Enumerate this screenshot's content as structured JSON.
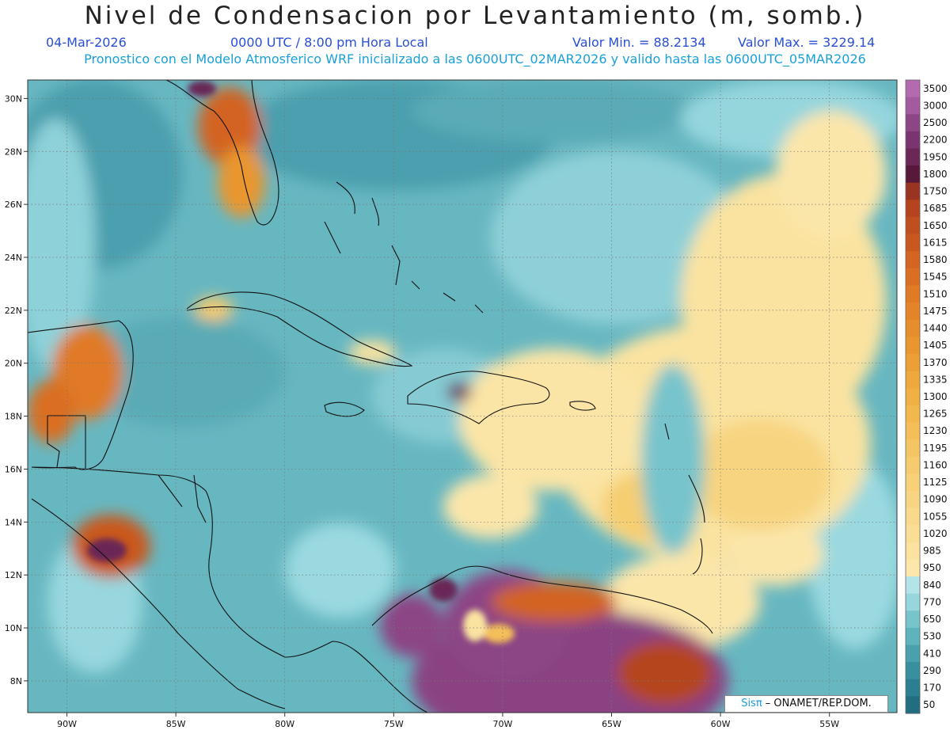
{
  "header": {
    "title": "Nivel de Condensacion por Levantamiento (m, somb.)",
    "date": "04-Mar-2026",
    "time": "0000 UTC / 8:00 pm Hora Local",
    "min_label": "Valor Min. = 88.2134",
    "max_label": "Valor Max. = 3229.14",
    "model_line": "Pronostico con el Modelo Atmosferico WRF inicializado a las 0600UTC_02MAR2026 y valido hasta las  0600UTC_05MAR2026"
  },
  "map": {
    "lat_ticks": [
      "30N",
      "28N",
      "26N",
      "24N",
      "22N",
      "20N",
      "18N",
      "16N",
      "14N",
      "12N",
      "10N",
      "8N"
    ],
    "lon_ticks": [
      "90W",
      "85W",
      "80W",
      "75W",
      "70W",
      "65W",
      "60W",
      "55W"
    ],
    "lat_values": [
      30,
      28,
      26,
      24,
      22,
      20,
      18,
      16,
      14,
      12,
      10,
      8
    ],
    "lon_values": [
      -90,
      -85,
      -80,
      -75,
      -70,
      -65,
      -60,
      -55
    ],
    "lon_range": [
      -91.8,
      -51.9
    ],
    "lat_range": [
      6.8,
      30.7
    ]
  },
  "legend": {
    "levels": [
      "3500",
      "3000",
      "2500",
      "2200",
      "1950",
      "1800",
      "1750",
      "1685",
      "1650",
      "1615",
      "1580",
      "1545",
      "1510",
      "1475",
      "1440",
      "1405",
      "1370",
      "1335",
      "1300",
      "1265",
      "1230",
      "1195",
      "1160",
      "1125",
      "1090",
      "1055",
      "1020",
      "985",
      "950",
      "840",
      "770",
      "650",
      "530",
      "410",
      "290",
      "170",
      "50"
    ],
    "colors": [
      "#b46aae",
      "#a35a9e",
      "#8c4585",
      "#7a3470",
      "#6b2756",
      "#58183a",
      "#9a3420",
      "#b5441e",
      "#c04f1f",
      "#c9581f",
      "#d36421",
      "#da6e23",
      "#e07a25",
      "#e48428",
      "#e78d2b",
      "#ea962f",
      "#ec9f34",
      "#eea83b",
      "#f0b044",
      "#f2b84e",
      "#f4bf58",
      "#f5c563",
      "#f6cb6d",
      "#f7d077",
      "#f8d582",
      "#f9da8c",
      "#fade96",
      "#fbe2a0",
      "#fce6aa",
      "#b3e4ea",
      "#97d6dd",
      "#78c4cc",
      "#5fb3bd",
      "#4aa1ad",
      "#38909e",
      "#2c7f90",
      "#226d80"
    ]
  },
  "credit": {
    "brand": "Sisπ",
    "text": " – ONAMET/REP.DOM."
  }
}
